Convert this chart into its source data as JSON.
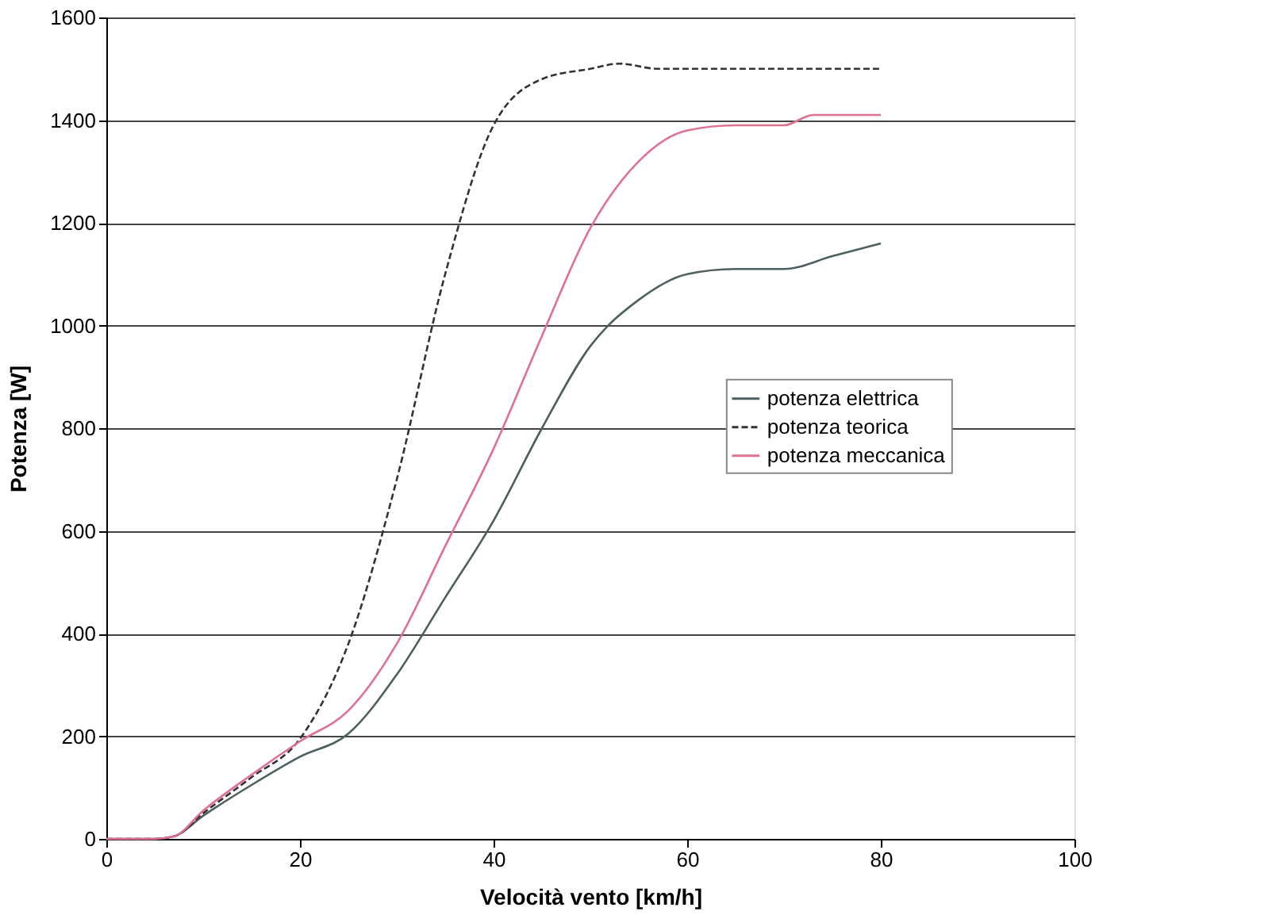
{
  "chart_data": {
    "type": "line",
    "xlabel": "Velocità vento [km/h]",
    "ylabel": "Potenza  [W]",
    "xlim": [
      0,
      100
    ],
    "xticks": [
      0,
      20,
      40,
      60,
      80,
      100
    ],
    "ylim": [
      0,
      1600
    ],
    "yticks": [
      0,
      200,
      400,
      600,
      800,
      1000,
      1200,
      1400,
      1600
    ],
    "grid": "y",
    "legend": "right",
    "marker": "none",
    "series": [
      {
        "name": "potenza elettrica",
        "color": "#4d5f5f",
        "line_style": "solid",
        "x": [
          0,
          5,
          7,
          10,
          15,
          20,
          25,
          30,
          35,
          40,
          45,
          50,
          55,
          60,
          65,
          70,
          75,
          80
        ],
        "values": [
          0,
          0,
          5,
          45,
          105,
          160,
          205,
          320,
          470,
          620,
          800,
          960,
          1050,
          1100,
          1110,
          1110,
          1135,
          1160
        ]
      },
      {
        "name": "potenza teorica",
        "color": "#333333",
        "line_style": "dashed",
        "x": [
          0,
          5,
          7,
          10,
          15,
          20,
          25,
          30,
          35,
          40,
          45,
          50,
          53,
          57,
          60,
          70,
          80
        ],
        "values": [
          0,
          0,
          5,
          50,
          120,
          195,
          380,
          700,
          1100,
          1390,
          1480,
          1500,
          1510,
          1500,
          1500,
          1500,
          1500
        ]
      },
      {
        "name": "potenza meccanica",
        "color": "#e07090",
        "line_style": "solid",
        "x": [
          0,
          5,
          7,
          10,
          15,
          20,
          25,
          30,
          35,
          40,
          45,
          50,
          55,
          60,
          65,
          70,
          73,
          80
        ],
        "values": [
          0,
          0,
          5,
          55,
          125,
          190,
          250,
          380,
          570,
          760,
          980,
          1190,
          1320,
          1380,
          1390,
          1390,
          1410,
          1410
        ]
      }
    ]
  }
}
